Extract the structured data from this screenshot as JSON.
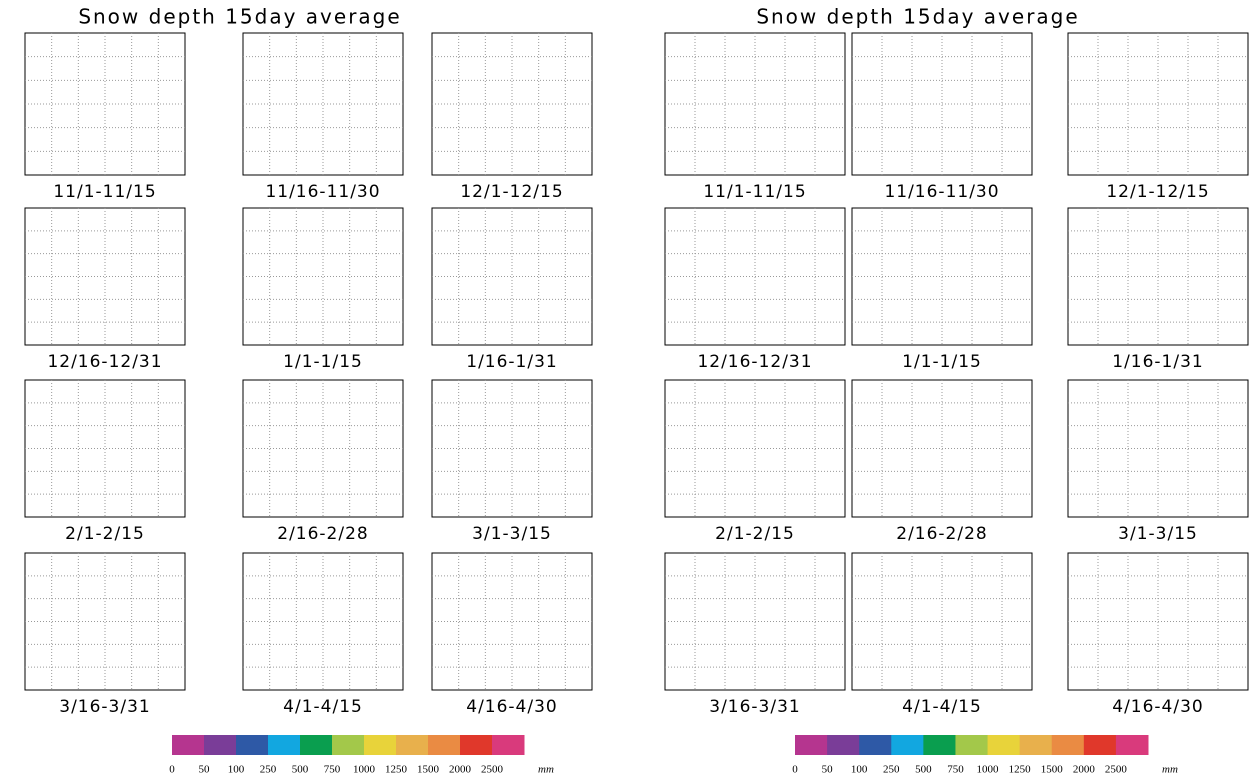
{
  "panels": [
    {
      "title": "Snow depth  15day average",
      "maps": [
        "11/1-11/15",
        "11/16-11/30",
        "12/1-12/15",
        "12/16-12/31",
        "1/1-1/15",
        "1/16-1/31",
        "2/1-2/15",
        "2/16-2/28",
        "3/1-3/15",
        "3/16-3/31",
        "4/1-4/15",
        "4/16-4/30"
      ],
      "colorbar": {
        "levels": [
          0,
          50,
          100,
          250,
          500,
          750,
          1000,
          1250,
          1500,
          2000,
          2500
        ],
        "colors": [
          "#b5358f",
          "#7a3d98",
          "#2e59a6",
          "#12a7e0",
          "#0a9e4f",
          "#a3c84a",
          "#e8d33a",
          "#e8b04c",
          "#ea8b43",
          "#e0382b",
          "#d93a7c"
        ],
        "unit": "mm"
      }
    },
    {
      "title": "Snow depth  15day average",
      "maps": [
        "11/1-11/15",
        "11/16-11/30",
        "12/1-12/15",
        "12/16-12/31",
        "1/1-1/15",
        "1/16-1/31",
        "2/1-2/15",
        "2/16-2/28",
        "3/1-3/15",
        "3/16-3/31",
        "4/1-4/15",
        "4/16-4/30"
      ],
      "colorbar": {
        "levels": [
          0,
          50,
          100,
          250,
          500,
          750,
          1000,
          1250,
          1500,
          2000,
          2500
        ],
        "colors": [
          "#b5358f",
          "#7a3d98",
          "#2e59a6",
          "#12a7e0",
          "#0a9e4f",
          "#a3c84a",
          "#e8d33a",
          "#e8b04c",
          "#ea8b43",
          "#e0382b",
          "#d93a7c"
        ],
        "unit": "mm"
      }
    }
  ]
}
